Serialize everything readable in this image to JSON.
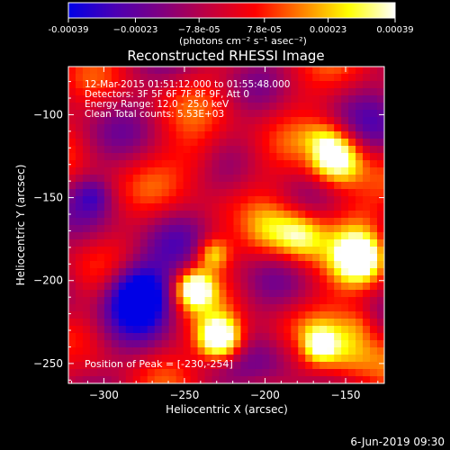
{
  "chart_data": {
    "type": "heatmap",
    "title": "Reconstructed RHESSI Image",
    "xlabel": "Heliocentric X (arcsec)",
    "ylabel": "Heliocentric Y (arcsec)",
    "xlim": [
      -322,
      -126
    ],
    "ylim": [
      -262,
      -71
    ],
    "x_ticks": [
      -300,
      -250,
      -200,
      -150
    ],
    "x_tick_labels": [
      "−300",
      "−250",
      "−200",
      "−150"
    ],
    "y_ticks": [
      -100,
      -150,
      -200,
      -250
    ],
    "y_tick_labels": [
      "−100",
      "−150",
      "−200",
      "−250"
    ],
    "colorbar": {
      "range": [
        -0.00039,
        0.00039
      ],
      "tick_values": [
        -0.00039,
        -0.00023,
        -7.8e-05,
        7.8e-05,
        0.00023,
        0.00039
      ],
      "tick_labels": [
        "-0.00039",
        "−0.00023",
        "−7.8e-05",
        "7.8e-05",
        "0.00023",
        "0.00039"
      ],
      "unit_label": "(photons cm⁻² s⁻¹ asec⁻²)",
      "colors": [
        "#0000e6",
        "#4b00b4",
        "#800080",
        "#c00040",
        "#ff0000",
        "#ff8000",
        "#ffff00",
        "#ffffff"
      ]
    },
    "annotations": [
      "12-Mar-2015 01:51:12.000 to 01:55:48.000",
      "Detectors: 3F 5F 6F 7F 8F 9F, Att 0",
      "Energy Range: 12.0 - 25.0 keV",
      "Clean     Total counts: 5.53E+03"
    ],
    "peak_label": "Position of Peak = [-230,-254]",
    "peak_position": [
      -230,
      -254
    ],
    "grid": false
  },
  "footer_timestamp": "6-Jun-2019 09:30"
}
